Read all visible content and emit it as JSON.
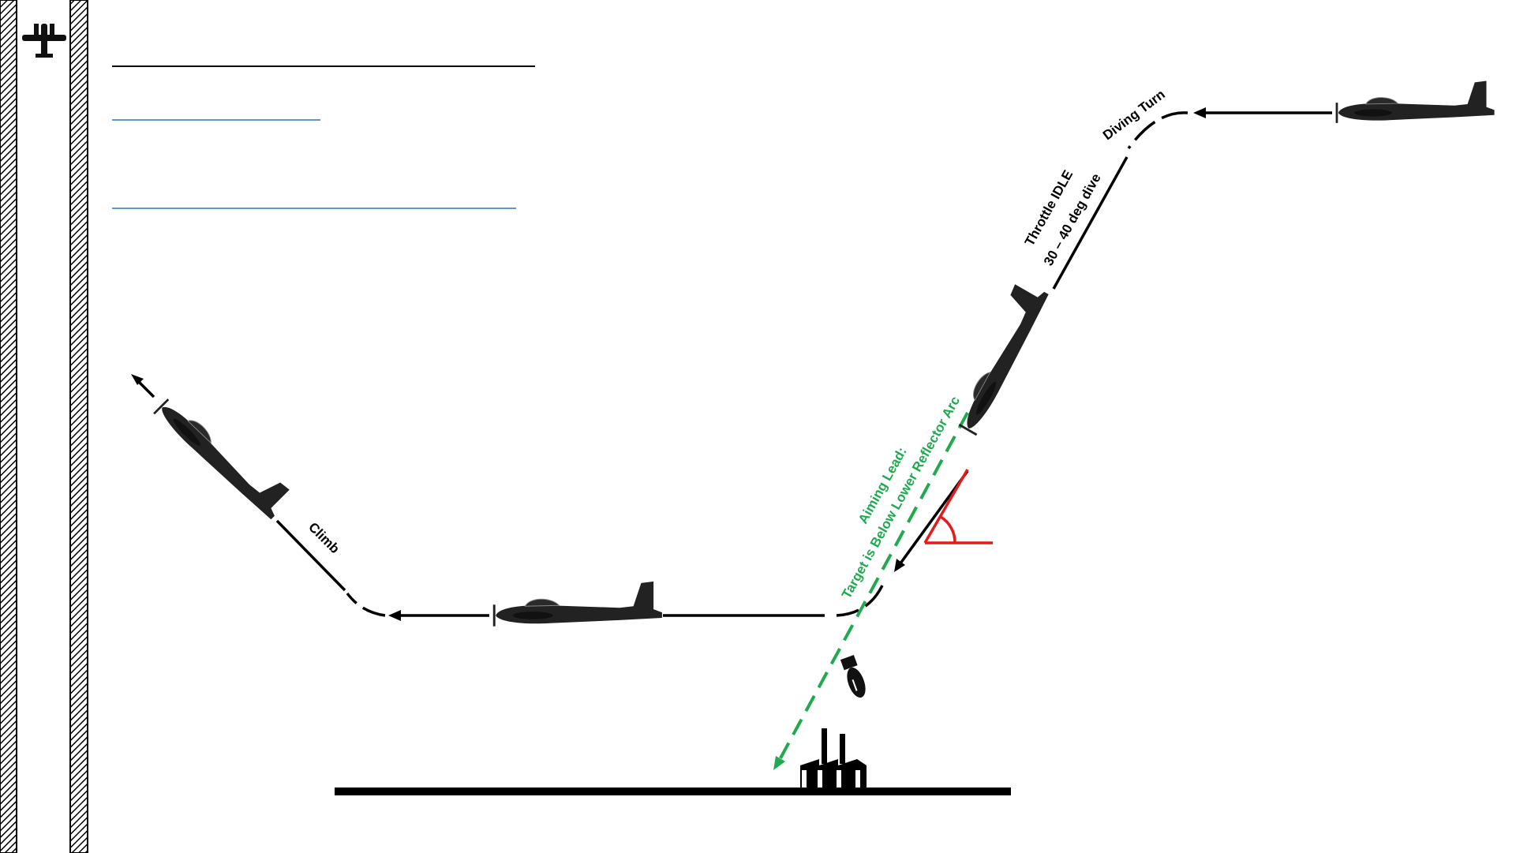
{
  "labels": {
    "diving_turn": "Diving Turn",
    "throttle": "Throttle IDLE",
    "dive_angle": "30 – 40 deg dive",
    "aiming_line1": "Aiming Lead:",
    "aiming_line2": "Target is Below Lower Reflector Arc",
    "climb": "Climb"
  },
  "colors": {
    "path": "#000000",
    "aiming": "#1faa4f",
    "angle": "#e31b1b",
    "link_line": "#2e75b6"
  },
  "icons": {
    "sidebar": "aircraft-icon",
    "target": "factory-icon",
    "ordnance": "bomb-icon"
  }
}
